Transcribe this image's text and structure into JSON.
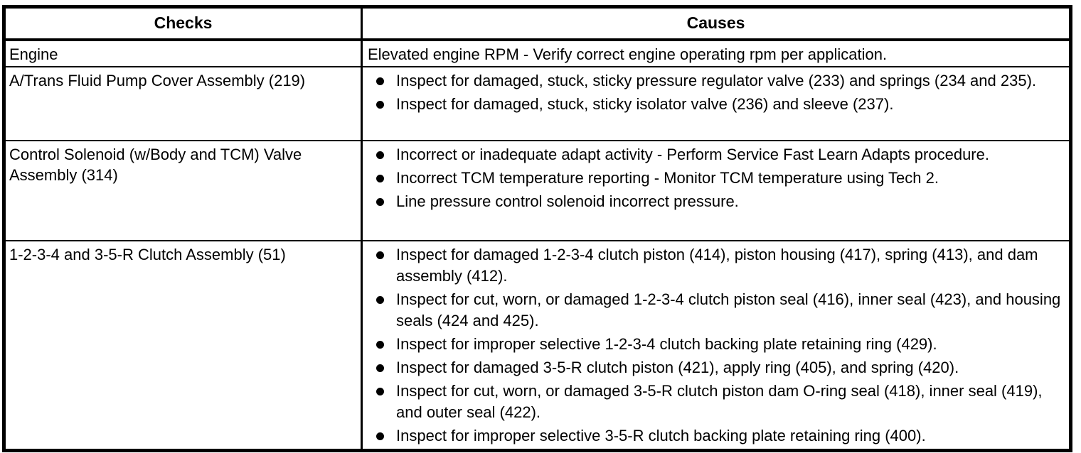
{
  "page": {
    "background_color": "#ffffff",
    "text_color": "#000000",
    "border_color": "#000000"
  },
  "table": {
    "headers": [
      "Checks",
      "Causes"
    ],
    "rows": [
      {
        "check": "Engine",
        "causes": [
          "Elevated engine RPM - Verify correct engine operating rpm per application."
        ]
      },
      {
        "check": "A/Trans Fluid Pump Cover Assembly (219)",
        "causes": [
          "Inspect for damaged, stuck, sticky pressure regulator valve (233) and springs (234 and 235).",
          "Inspect for damaged, stuck, sticky isolator valve (236) and sleeve (237)."
        ]
      },
      {
        "check": "Control Solenoid (w/Body and TCM) Valve Assembly (314)",
        "causes": [
          "Incorrect or inadequate adapt activity - Perform Service Fast Learn Adapts procedure.",
          "Incorrect TCM temperature reporting - Monitor TCM temperature using Tech 2.",
          "Line pressure control solenoid incorrect pressure."
        ]
      },
      {
        "check": "1-2-3-4 and 3-5-R Clutch Assembly (51)",
        "causes": [
          "Inspect for damaged 1-2-3-4 clutch piston (414), piston housing (417), spring (413), and dam assembly (412).",
          "Inspect for cut, worn, or damaged 1-2-3-4 clutch piston seal (416), inner seal (423), and housing seals (424 and 425).",
          "Inspect for improper selective 1-2-3-4 clutch backing plate retaining ring (429).",
          "Inspect for damaged 3-5-R clutch piston (421), apply ring (405), and spring (420).",
          "Inspect for cut, worn, or damaged 3-5-R clutch piston dam O-ring seal (418), inner seal (419), and outer seal (422).",
          "Inspect for improper selective 3-5-R clutch backing plate retaining ring (400)."
        ]
      }
    ]
  }
}
